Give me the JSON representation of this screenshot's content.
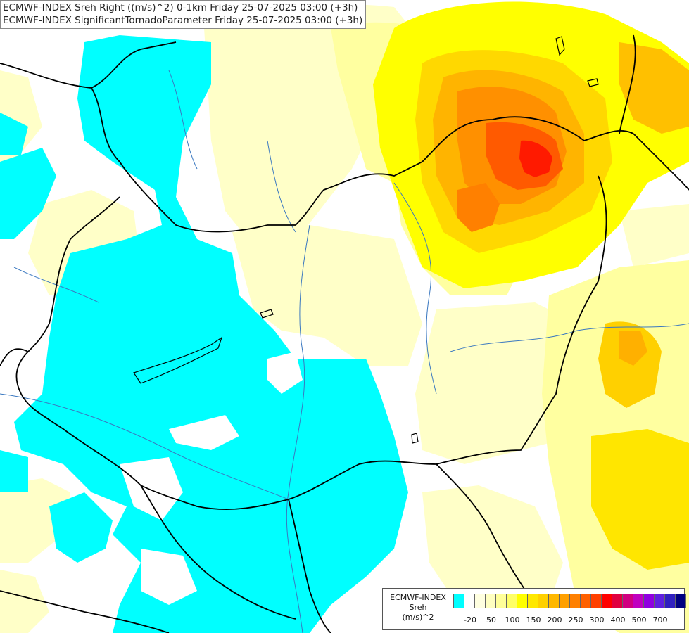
{
  "map": {
    "title_line1": "ECMWF-INDEX Sreh Right ((m/s)^2) 0-1km Friday 25-07-2025 03:00 (+3h)",
    "title_line2": "ECMWF-INDEX SignificantTornadoParameter Friday 25-07-2025 03:00 (+3h)"
  },
  "legend": {
    "line1": "ECMWF-INDEX",
    "line2": "Sreh",
    "line3": "(m/s)^2",
    "colors": [
      "#00ffff",
      "#ffffff",
      "#ffffe0",
      "#ffffc0",
      "#ffff99",
      "#ffff66",
      "#ffff00",
      "#ffe800",
      "#ffd000",
      "#ffb800",
      "#ffa000",
      "#ff8000",
      "#ff6000",
      "#ff4000",
      "#ff0000",
      "#e00040",
      "#d00080",
      "#c000c0",
      "#9000e0",
      "#6020e0",
      "#3020c0",
      "#000080"
    ],
    "ticks": [
      "-20",
      "50",
      "100",
      "150",
      "200",
      "250",
      "300",
      "400",
      "500",
      "700"
    ]
  }
}
